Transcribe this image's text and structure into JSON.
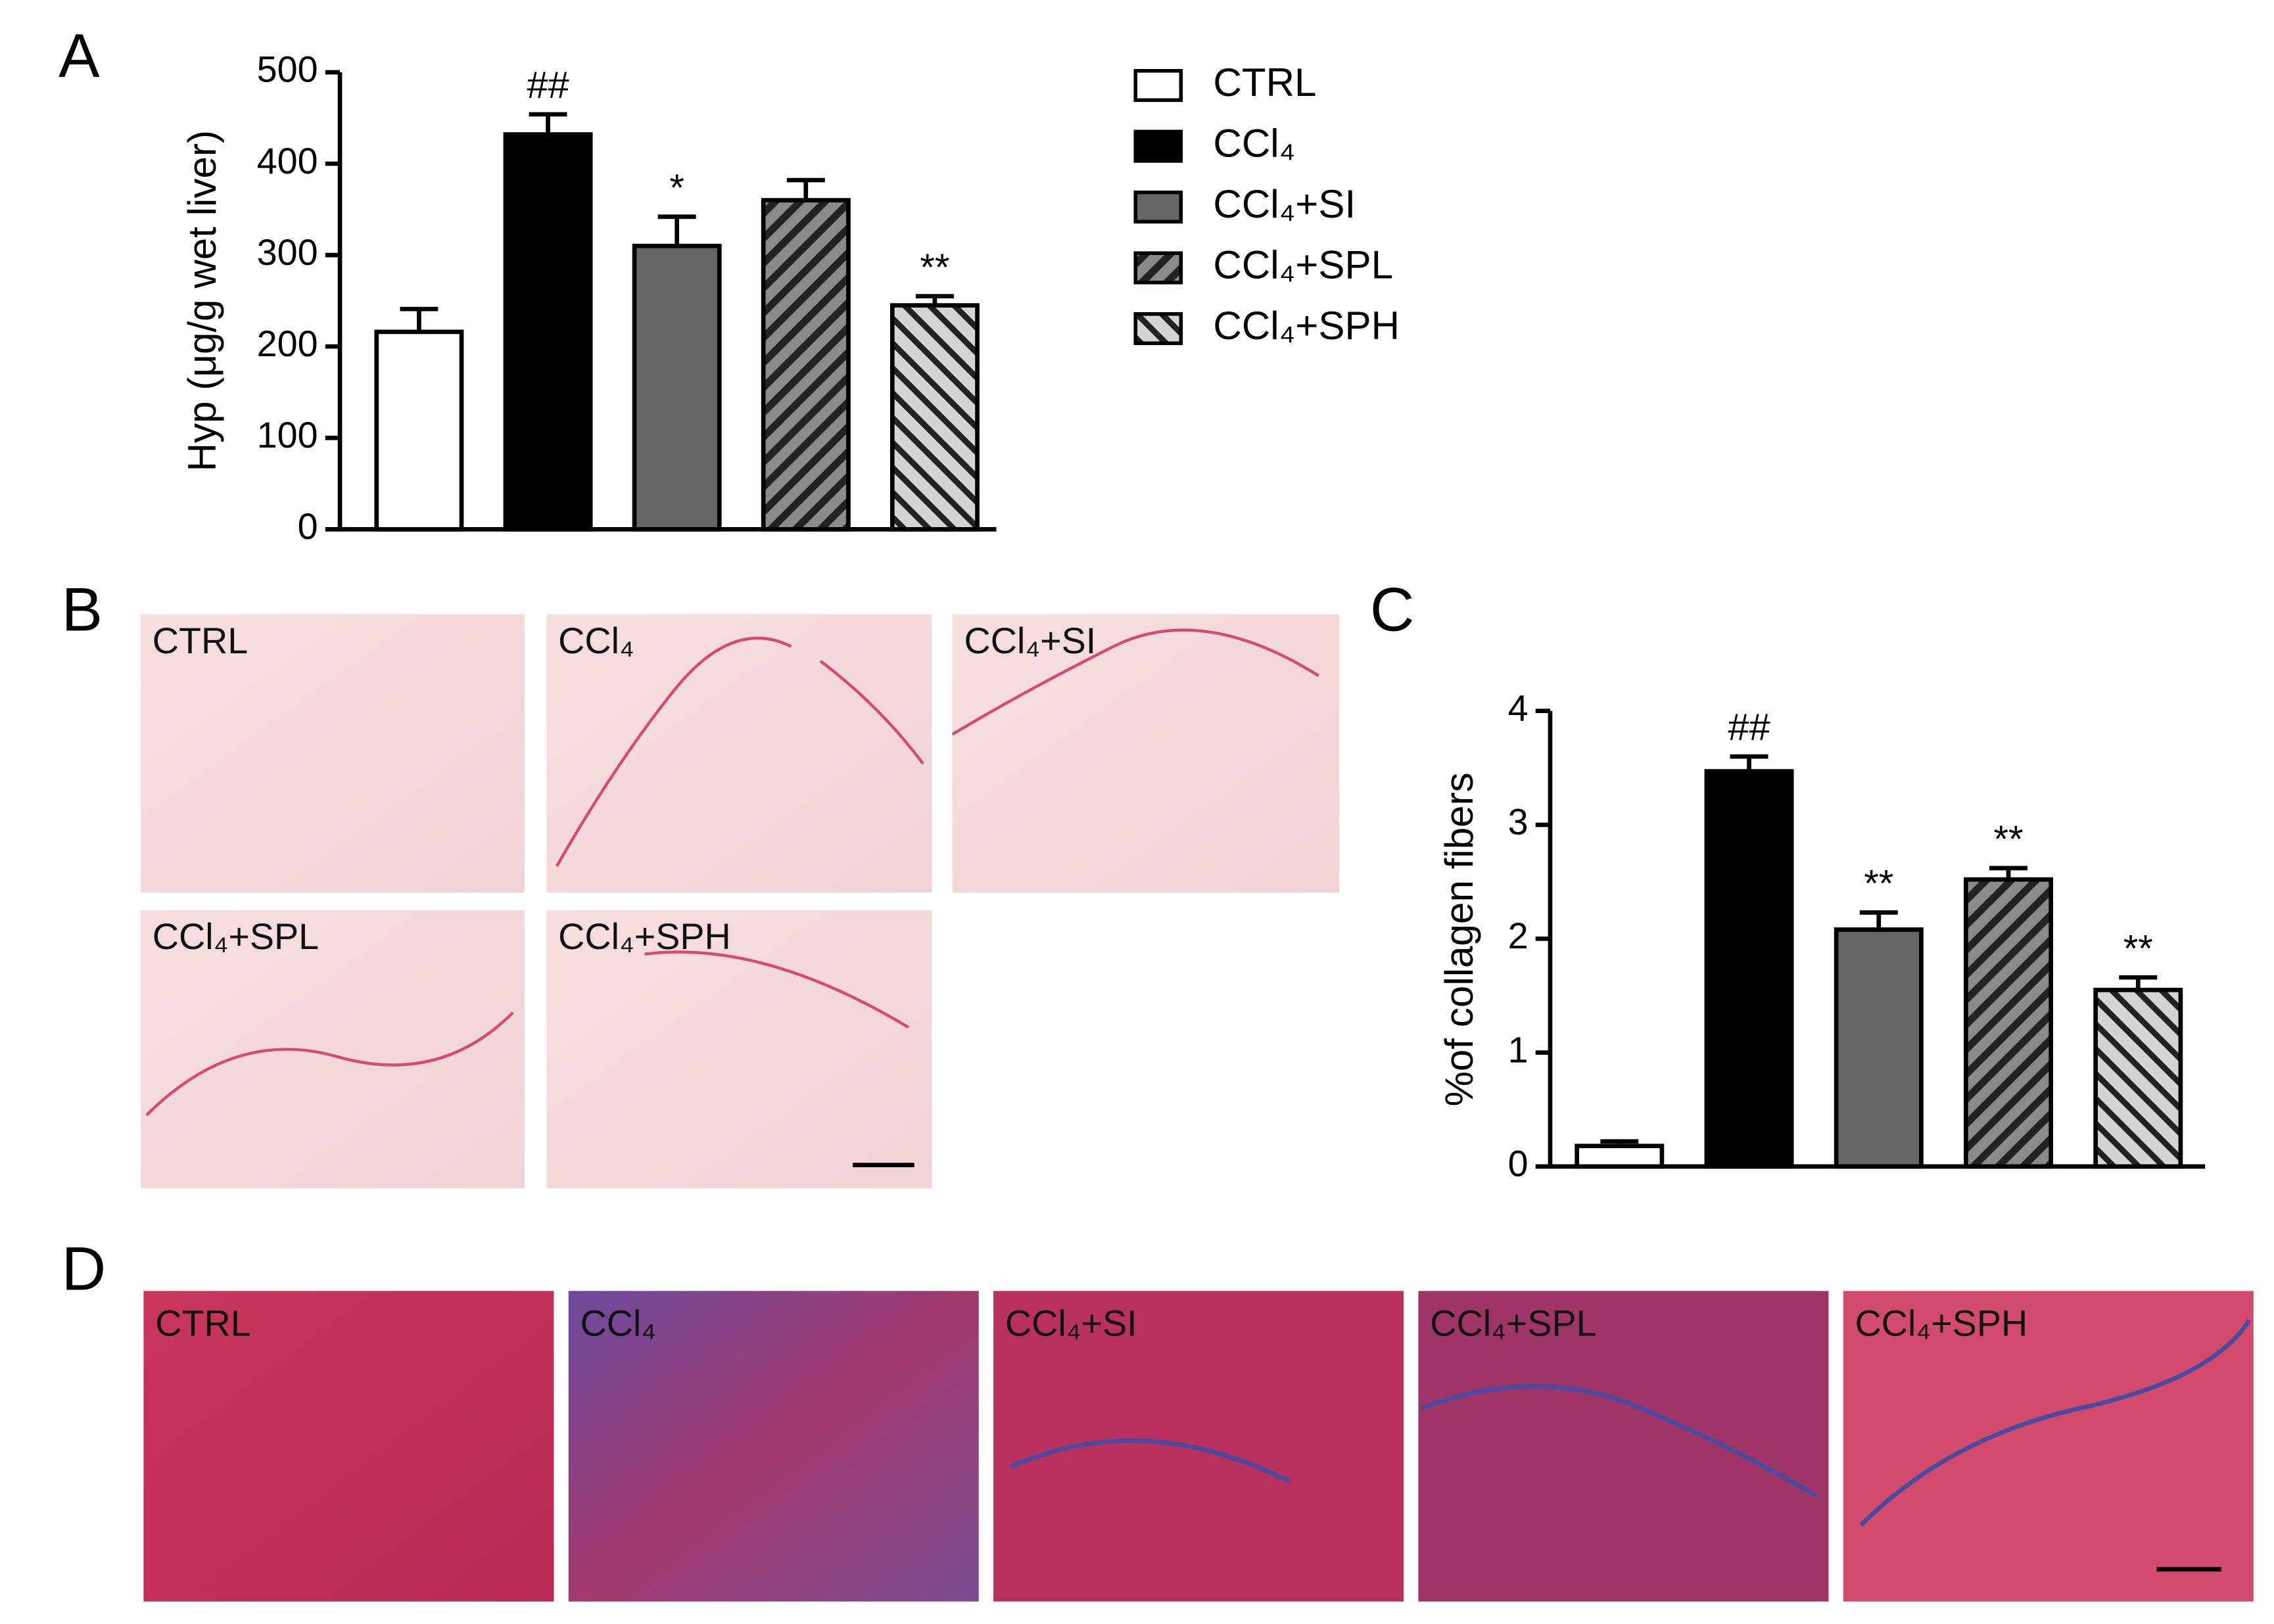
{
  "chart_data": [
    {
      "type": "bar",
      "panel": "A",
      "ylabel": "Hyp  (μg/g wet liver)",
      "categories": [
        "CTRL",
        "CCl₄",
        "CCl₄+SI",
        "CCl₄+SPL",
        "CCl₄+SPH"
      ],
      "values": [
        216,
        432,
        310,
        360,
        245
      ],
      "errors": [
        25,
        22,
        32,
        22,
        10
      ],
      "annotations": [
        null,
        "##",
        "*",
        null,
        "**"
      ],
      "fills": [
        "white",
        "black",
        "#656565",
        "hatch-dark",
        "hatch-light"
      ],
      "ylim": [
        0,
        500
      ],
      "yticks": [
        0,
        100,
        200,
        300,
        400,
        500
      ],
      "legend": "right"
    },
    {
      "type": "bar",
      "panel": "C",
      "ylabel": "%of collagen fibers",
      "categories": [
        "CTRL",
        "CCl₄",
        "CCl₄+SI",
        "CCl₄+SPL",
        "CCl₄+SPH"
      ],
      "values": [
        0.18,
        3.47,
        2.08,
        2.52,
        1.55
      ],
      "errors": [
        0.04,
        0.13,
        0.15,
        0.1,
        0.11
      ],
      "annotations": [
        null,
        "##",
        "**",
        "**",
        "**"
      ],
      "fills": [
        "white",
        "black",
        "#656565",
        "hatch-dark",
        "hatch-light"
      ],
      "ylim": [
        0,
        4
      ],
      "yticks": [
        0,
        1,
        2,
        3,
        4
      ]
    }
  ],
  "micrographs": {
    "B": {
      "panel": "B",
      "labels": [
        "CTRL",
        "CCl₄",
        "CCl₄+SI",
        "CCl₄+SPL",
        "CCl₄+SPH"
      ]
    },
    "D": {
      "panel": "D",
      "labels": [
        "CTRL",
        "CCl₄",
        "CCl₄+SI",
        "CCl₄+SPL",
        "CCl₄+SPH"
      ]
    }
  }
}
